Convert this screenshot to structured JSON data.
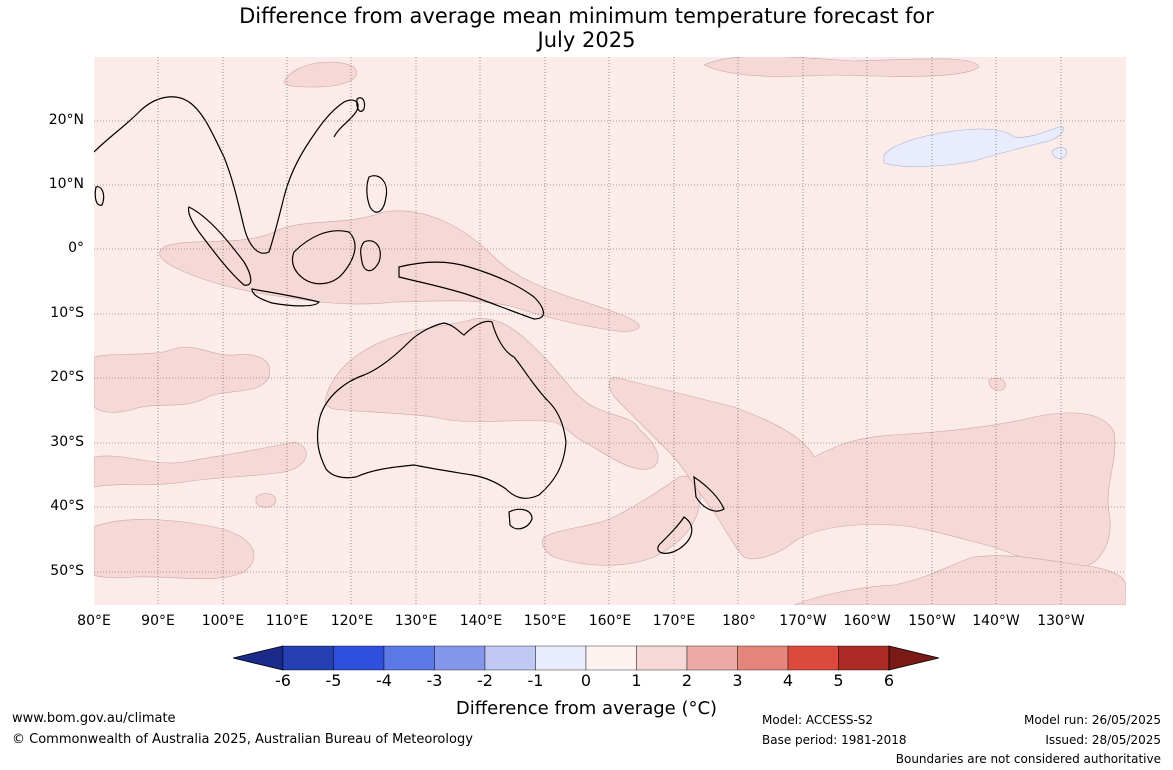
{
  "title_line1": "Difference from average mean minimum temperature forecast for",
  "title_line2": "July 2025",
  "lat_labels": [
    "20°N",
    "10°N",
    "0°",
    "10°S",
    "20°S",
    "30°S",
    "40°S",
    "50°S"
  ],
  "lon_labels": [
    "80°E",
    "90°E",
    "100°E",
    "110°E",
    "120°E",
    "130°E",
    "140°E",
    "150°E",
    "160°E",
    "170°E",
    "180°",
    "170°W",
    "160°W",
    "150°W",
    "140°W",
    "130°W"
  ],
  "colorbar": {
    "ticks": [
      "-6",
      "-5",
      "-4",
      "-3",
      "-2",
      "-1",
      "0",
      "1",
      "2",
      "3",
      "4",
      "5",
      "6"
    ],
    "colors": [
      "#1a2b8c",
      "#2640b4",
      "#2f50dc",
      "#5a78e6",
      "#8497ea",
      "#c0c8f4",
      "#e8ecfc",
      "#fdf2f0",
      "#f6d8d6",
      "#eeaaa4",
      "#e6857c",
      "#dc4a3e",
      "#ab2a24",
      "#7a1a16"
    ],
    "label": "Difference from average (°C)"
  },
  "map_colors": {
    "background": "#fbebe9",
    "warm_anomaly": "#f6d8d6",
    "cool_anomaly": "#e8ecfc"
  },
  "footer": {
    "website": "www.bom.gov.au/climate",
    "copyright": "© Commonwealth of Australia 2025, Australian Bureau of Meteorology",
    "model": "Model: ACCESS-S2",
    "base_period": "Base period: 1981-2018",
    "model_run": "Model run: 26/05/2025",
    "issued": "Issued: 28/05/2025",
    "disclaimer": "Boundaries are not considered authoritative"
  }
}
